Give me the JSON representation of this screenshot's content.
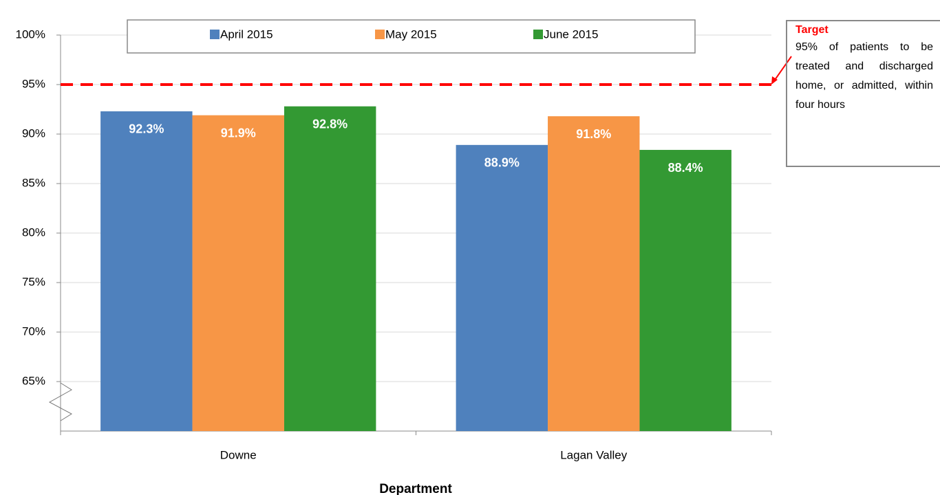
{
  "chart_data": {
    "type": "bar",
    "x_label": "Department",
    "categories": [
      "Downe",
      "Lagan Valley"
    ],
    "series": [
      {
        "name": "April 2015",
        "color": "#4f81bd",
        "values": [
          92.3,
          88.9
        ],
        "value_labels": [
          "92.3%",
          "88.9%"
        ]
      },
      {
        "name": "May 2015",
        "color": "#f79646",
        "values": [
          91.9,
          91.8
        ],
        "value_labels": [
          "91.9%",
          "91.8%"
        ]
      },
      {
        "name": "June 2015",
        "color": "#339933",
        "values": [
          92.8,
          88.4
        ],
        "value_labels": [
          "92.8%",
          "88.4%"
        ]
      }
    ],
    "ylim": [
      60,
      100
    ],
    "yticks": [
      {
        "value": 65,
        "label": "65%"
      },
      {
        "value": 70,
        "label": "70%"
      },
      {
        "value": 75,
        "label": "75%"
      },
      {
        "value": 80,
        "label": "80%"
      },
      {
        "value": 85,
        "label": "85%"
      },
      {
        "value": 90,
        "label": "90%"
      },
      {
        "value": 95,
        "label": "95%"
      },
      {
        "value": 100,
        "label": "100%"
      }
    ],
    "grid": true,
    "legend": "top",
    "target": {
      "value": 95,
      "color": "#ff0000",
      "title": "Target",
      "text": "95% of patients to be treated and discharged home, or admitted, within four hours"
    }
  }
}
